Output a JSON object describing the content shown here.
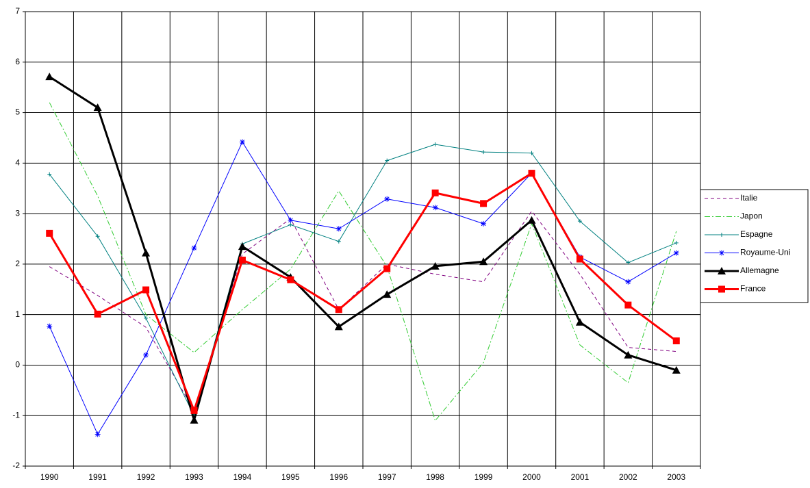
{
  "chart_data": {
    "type": "line",
    "categories": [
      "1990",
      "1991",
      "1992",
      "1993",
      "1994",
      "1995",
      "1996",
      "1997",
      "1998",
      "1999",
      "2000",
      "2001",
      "2002",
      "2003"
    ],
    "ylim": [
      -2,
      7
    ],
    "yticks": [
      -2,
      -1,
      0,
      1,
      2,
      3,
      4,
      5,
      6,
      7
    ],
    "grid": true,
    "legend": "right",
    "series": [
      {
        "name": "Italie",
        "color": "#800080",
        "dash": "dotted",
        "marker": "none",
        "bold": false,
        "values": [
          1.95,
          1.38,
          0.75,
          -0.9,
          2.2,
          2.9,
          1.1,
          2.0,
          1.8,
          1.65,
          3.05,
          1.8,
          0.35,
          0.27
        ]
      },
      {
        "name": "Japon",
        "color": "#33cc33",
        "dash": "dashdot",
        "marker": "none",
        "bold": false,
        "values": [
          5.2,
          3.35,
          1.0,
          0.25,
          1.1,
          1.9,
          3.45,
          1.95,
          -1.1,
          0.05,
          2.8,
          0.4,
          -0.35,
          2.65
        ]
      },
      {
        "name": "Espagne",
        "color": "#008080",
        "dash": "solid",
        "marker": "plus",
        "bold": false,
        "values": [
          3.78,
          2.55,
          0.93,
          -1.0,
          2.4,
          2.78,
          2.45,
          4.05,
          4.37,
          4.22,
          4.2,
          2.85,
          2.03,
          2.42
        ]
      },
      {
        "name": "Royaume-Uni",
        "color": "#0000ff",
        "dash": "solid",
        "marker": "star",
        "bold": false,
        "values": [
          0.77,
          -1.37,
          0.2,
          2.32,
          4.42,
          2.87,
          2.7,
          3.29,
          3.12,
          2.8,
          3.8,
          2.14,
          1.65,
          2.22
        ]
      },
      {
        "name": "Allemagne",
        "color": "#000000",
        "dash": "solid",
        "marker": "triangle",
        "bold": true,
        "values": [
          5.71,
          5.1,
          2.22,
          -1.09,
          2.35,
          1.74,
          0.76,
          1.4,
          1.96,
          2.05,
          2.87,
          0.85,
          0.2,
          -0.1
        ]
      },
      {
        "name": "France",
        "color": "#ff0000",
        "dash": "solid",
        "marker": "square",
        "bold": true,
        "values": [
          2.61,
          1.01,
          1.49,
          -0.9,
          2.08,
          1.69,
          1.1,
          1.91,
          3.41,
          3.2,
          3.8,
          2.1,
          1.19,
          0.48
        ]
      }
    ]
  }
}
